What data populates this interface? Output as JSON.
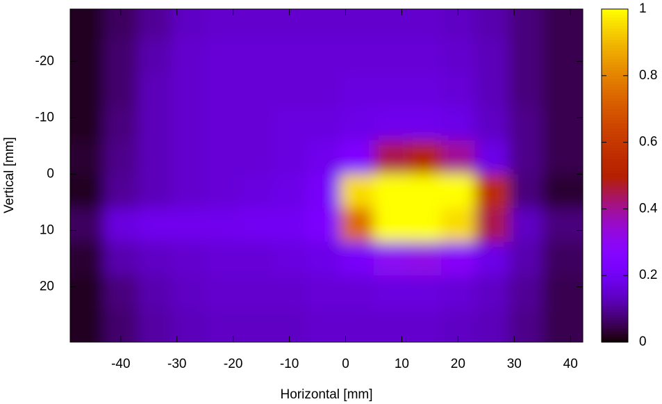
{
  "chart_data": {
    "type": "heatmap",
    "palette": "gnuplot",
    "x_label": "Horizontal [mm]",
    "y_label": "Vertical [mm]",
    "x": [
      -46,
      -40,
      -34,
      -28,
      -22,
      -16,
      -10,
      -4,
      2,
      8,
      14,
      20,
      26,
      32,
      38
    ],
    "y": [
      -27,
      -21,
      -15,
      -9,
      -3,
      3,
      9,
      15,
      21,
      27
    ],
    "z": [
      [
        0.02,
        0.06,
        0.1,
        0.14,
        0.15,
        0.15,
        0.15,
        0.15,
        0.15,
        0.15,
        0.15,
        0.14,
        0.12,
        0.08,
        0.05
      ],
      [
        0.02,
        0.07,
        0.12,
        0.15,
        0.16,
        0.16,
        0.16,
        0.16,
        0.16,
        0.16,
        0.16,
        0.15,
        0.13,
        0.08,
        0.05
      ],
      [
        0.02,
        0.07,
        0.13,
        0.15,
        0.16,
        0.16,
        0.16,
        0.16,
        0.17,
        0.17,
        0.17,
        0.16,
        0.13,
        0.08,
        0.05
      ],
      [
        0.02,
        0.08,
        0.13,
        0.15,
        0.16,
        0.16,
        0.17,
        0.17,
        0.18,
        0.19,
        0.19,
        0.18,
        0.14,
        0.09,
        0.05
      ],
      [
        0.03,
        0.09,
        0.13,
        0.15,
        0.16,
        0.16,
        0.17,
        0.19,
        0.25,
        0.45,
        0.5,
        0.4,
        0.18,
        0.09,
        0.05
      ],
      [
        0.02,
        0.1,
        0.13,
        0.15,
        0.16,
        0.17,
        0.18,
        0.22,
        0.95,
        1,
        1,
        1,
        0.55,
        0.08,
        0.03
      ],
      [
        0.06,
        0.17,
        0.19,
        0.19,
        0.19,
        0.2,
        0.2,
        0.24,
        0.75,
        1,
        1,
        0.95,
        0.45,
        0.14,
        0.08
      ],
      [
        0.03,
        0.12,
        0.14,
        0.15,
        0.16,
        0.16,
        0.17,
        0.18,
        0.22,
        0.3,
        0.32,
        0.28,
        0.18,
        0.12,
        0.06
      ],
      [
        0.02,
        0.08,
        0.12,
        0.14,
        0.15,
        0.15,
        0.15,
        0.16,
        0.16,
        0.17,
        0.17,
        0.16,
        0.14,
        0.1,
        0.05
      ],
      [
        0.02,
        0.07,
        0.11,
        0.13,
        0.14,
        0.14,
        0.14,
        0.15,
        0.15,
        0.15,
        0.15,
        0.14,
        0.13,
        0.09,
        0.05
      ]
    ],
    "xlim": [
      -49,
      42.2
    ],
    "ylim": [
      29.8,
      -29.3
    ],
    "xticks": [
      -40,
      -30,
      -20,
      -10,
      0,
      10,
      20,
      30,
      40
    ],
    "yticks": [
      -20,
      -10,
      0,
      10,
      20
    ],
    "cblim": [
      0,
      1
    ],
    "cbticks": [
      0,
      0.2,
      0.4,
      0.6,
      0.8,
      1
    ]
  }
}
